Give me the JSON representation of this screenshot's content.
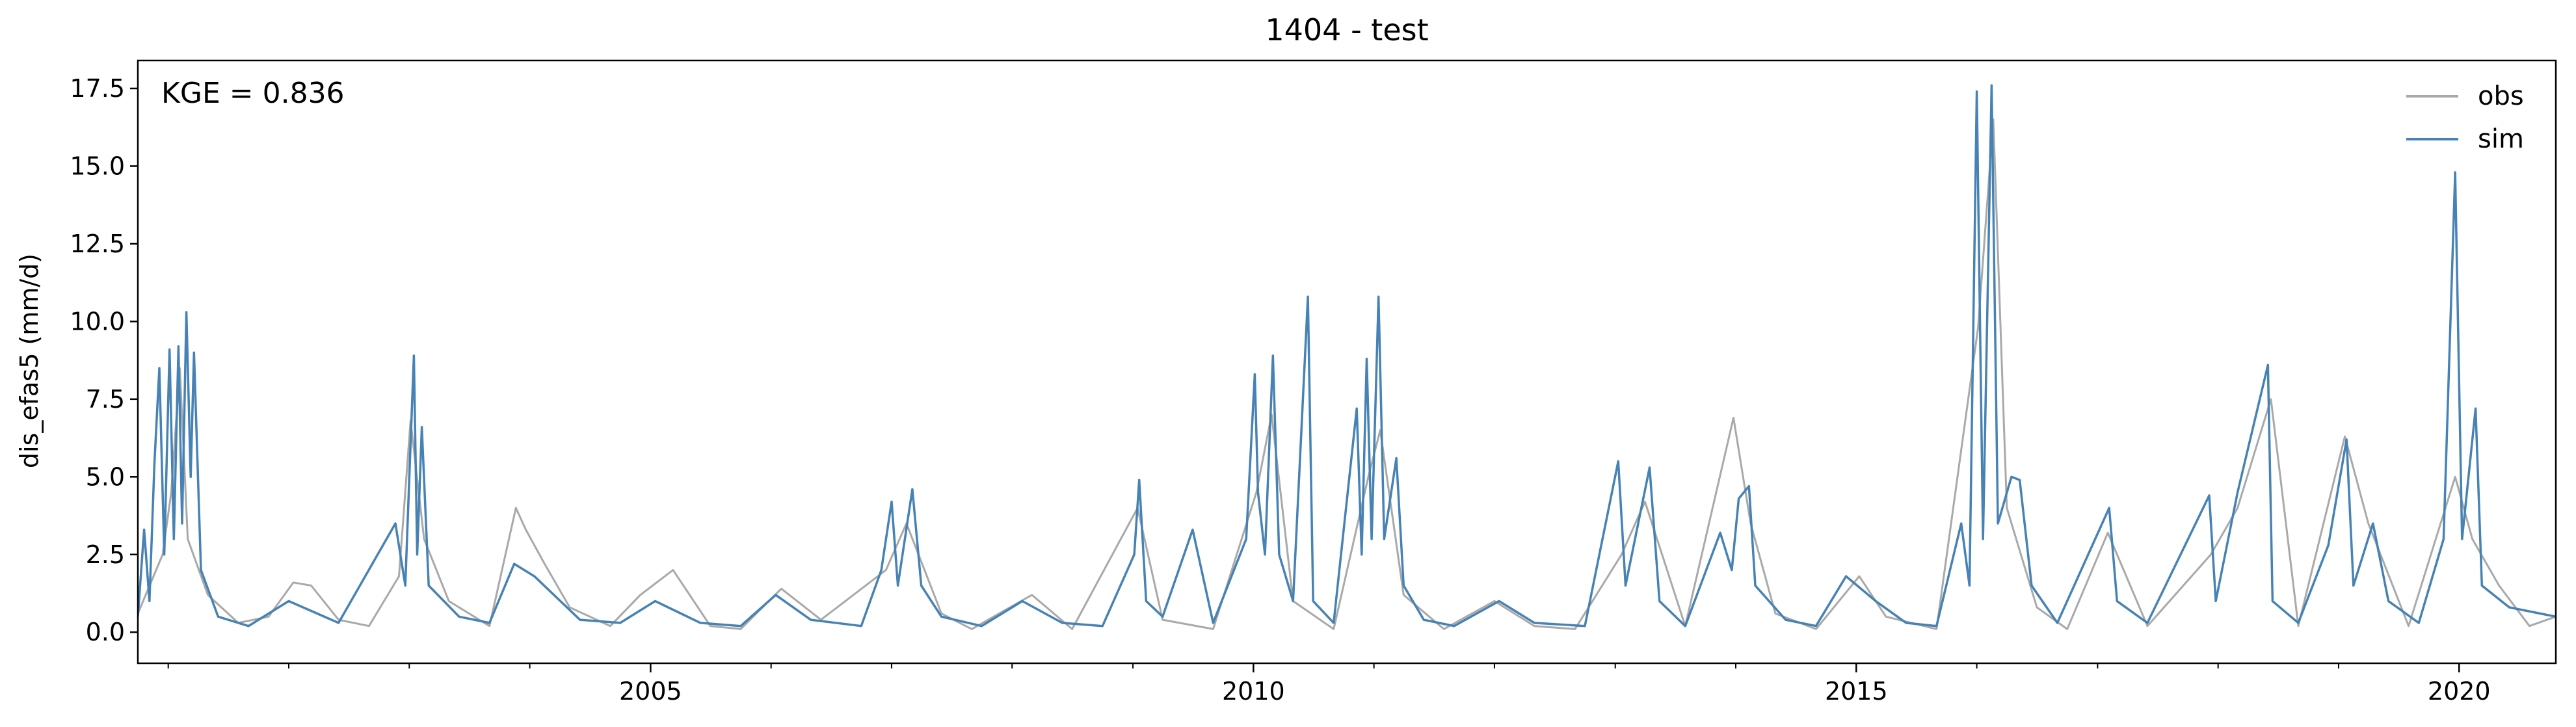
{
  "chart_data": {
    "type": "line",
    "title": "1404 - test",
    "xlabel": "",
    "ylabel": "dis_efas5 (mm/d)",
    "annotation": "KGE = 0.836",
    "xlim": [
      "2000-10-01",
      "2020-10-20"
    ],
    "ylim": [
      -1.0,
      18.4
    ],
    "x_major_ticks": [
      {
        "date": "2005-01-01",
        "label": "2005"
      },
      {
        "date": "2010-01-01",
        "label": "2010"
      },
      {
        "date": "2015-01-01",
        "label": "2015"
      },
      {
        "date": "2020-01-01",
        "label": "2020"
      }
    ],
    "y_ticks": [
      {
        "value": 0.0,
        "label": "0.0"
      },
      {
        "value": 2.5,
        "label": "2.5"
      },
      {
        "value": 5.0,
        "label": "5.0"
      },
      {
        "value": 7.5,
        "label": "7.5"
      },
      {
        "value": 10.0,
        "label": "10.0"
      },
      {
        "value": 12.5,
        "label": "12.5"
      },
      {
        "value": 15.0,
        "label": "15.0"
      },
      {
        "value": 17.5,
        "label": "17.5"
      }
    ],
    "legend_position": "top-right",
    "grid": false,
    "series": [
      {
        "name": "obs",
        "color": "#a9a9a9",
        "points": [
          [
            "2000-10-01",
            0.6
          ],
          [
            "2000-12-15",
            2.5
          ],
          [
            "2001-01-10",
            4.5
          ],
          [
            "2001-02-05",
            8.5
          ],
          [
            "2001-03-01",
            3.0
          ],
          [
            "2001-05-01",
            1.2
          ],
          [
            "2001-08-01",
            0.3
          ],
          [
            "2001-11-01",
            0.5
          ],
          [
            "2002-01-15",
            1.6
          ],
          [
            "2002-03-10",
            1.5
          ],
          [
            "2002-06-01",
            0.4
          ],
          [
            "2002-09-01",
            0.2
          ],
          [
            "2002-12-01",
            1.8
          ],
          [
            "2003-01-05",
            6.8
          ],
          [
            "2003-02-15",
            3.0
          ],
          [
            "2003-05-01",
            1.0
          ],
          [
            "2003-09-01",
            0.2
          ],
          [
            "2003-11-20",
            4.0
          ],
          [
            "2003-12-20",
            3.3
          ],
          [
            "2004-02-15",
            2.2
          ],
          [
            "2004-05-01",
            0.8
          ],
          [
            "2004-09-01",
            0.2
          ],
          [
            "2004-12-01",
            1.2
          ],
          [
            "2005-03-10",
            2.0
          ],
          [
            "2005-07-01",
            0.2
          ],
          [
            "2005-10-01",
            0.1
          ],
          [
            "2006-02-01",
            1.4
          ],
          [
            "2006-06-01",
            0.4
          ],
          [
            "2006-12-15",
            2.0
          ],
          [
            "2007-02-15",
            3.5
          ],
          [
            "2007-06-01",
            0.6
          ],
          [
            "2007-09-01",
            0.1
          ],
          [
            "2008-03-01",
            1.2
          ],
          [
            "2008-07-01",
            0.1
          ],
          [
            "2009-01-15",
            4.0
          ],
          [
            "2009-04-01",
            0.4
          ],
          [
            "2009-09-01",
            0.1
          ],
          [
            "2010-01-10",
            4.5
          ],
          [
            "2010-02-25",
            7.0
          ],
          [
            "2010-05-01",
            1.0
          ],
          [
            "2010-09-01",
            0.1
          ],
          [
            "2010-12-15",
            5.0
          ],
          [
            "2011-01-20",
            6.5
          ],
          [
            "2011-04-01",
            1.2
          ],
          [
            "2011-08-01",
            0.1
          ],
          [
            "2012-01-01",
            1.0
          ],
          [
            "2012-05-01",
            0.2
          ],
          [
            "2012-09-01",
            0.1
          ],
          [
            "2013-01-20",
            2.5
          ],
          [
            "2013-04-01",
            4.2
          ],
          [
            "2013-08-01",
            0.2
          ],
          [
            "2013-12-25",
            6.9
          ],
          [
            "2014-02-15",
            3.5
          ],
          [
            "2014-05-01",
            0.6
          ],
          [
            "2014-09-01",
            0.1
          ],
          [
            "2015-01-10",
            1.8
          ],
          [
            "2015-04-01",
            0.5
          ],
          [
            "2015-09-01",
            0.1
          ],
          [
            "2016-01-05",
            9.8
          ],
          [
            "2016-02-20",
            16.5
          ],
          [
            "2016-04-01",
            4.0
          ],
          [
            "2016-07-01",
            0.8
          ],
          [
            "2016-10-01",
            0.1
          ],
          [
            "2017-02-01",
            3.2
          ],
          [
            "2017-06-01",
            0.2
          ],
          [
            "2017-12-10",
            2.5
          ],
          [
            "2018-03-01",
            4.0
          ],
          [
            "2018-06-10",
            7.5
          ],
          [
            "2018-09-01",
            0.2
          ],
          [
            "2019-01-20",
            6.3
          ],
          [
            "2019-04-01",
            3.5
          ],
          [
            "2019-08-01",
            0.2
          ],
          [
            "2019-12-20",
            5.0
          ],
          [
            "2020-02-10",
            3.0
          ],
          [
            "2020-05-01",
            1.5
          ],
          [
            "2020-08-01",
            0.2
          ],
          [
            "2020-10-20",
            0.5
          ]
        ]
      },
      {
        "name": "sim",
        "color": "#4682b4",
        "points": [
          [
            "2000-10-01",
            0.5
          ],
          [
            "2000-10-20",
            3.3
          ],
          [
            "2000-11-05",
            1.0
          ],
          [
            "2000-11-20",
            5.4
          ],
          [
            "2000-12-05",
            8.5
          ],
          [
            "2000-12-20",
            2.5
          ],
          [
            "2001-01-05",
            9.1
          ],
          [
            "2001-01-18",
            3.0
          ],
          [
            "2001-02-01",
            9.2
          ],
          [
            "2001-02-12",
            3.5
          ],
          [
            "2001-02-25",
            10.3
          ],
          [
            "2001-03-10",
            5.0
          ],
          [
            "2001-03-20",
            9.0
          ],
          [
            "2001-04-10",
            2.0
          ],
          [
            "2001-06-01",
            0.5
          ],
          [
            "2001-09-01",
            0.2
          ],
          [
            "2002-01-01",
            1.0
          ],
          [
            "2002-06-01",
            0.3
          ],
          [
            "2002-11-20",
            3.5
          ],
          [
            "2002-12-20",
            1.5
          ],
          [
            "2003-01-08",
            6.9
          ],
          [
            "2003-01-15",
            8.9
          ],
          [
            "2003-01-25",
            2.5
          ],
          [
            "2003-02-08",
            6.6
          ],
          [
            "2003-03-01",
            1.5
          ],
          [
            "2003-06-01",
            0.5
          ],
          [
            "2003-09-01",
            0.3
          ],
          [
            "2003-11-15",
            2.2
          ],
          [
            "2004-01-15",
            1.8
          ],
          [
            "2004-06-01",
            0.4
          ],
          [
            "2004-10-01",
            0.3
          ],
          [
            "2005-01-15",
            1.0
          ],
          [
            "2005-06-01",
            0.3
          ],
          [
            "2005-10-01",
            0.2
          ],
          [
            "2006-01-15",
            1.2
          ],
          [
            "2006-05-01",
            0.4
          ],
          [
            "2006-10-01",
            0.2
          ],
          [
            "2006-12-01",
            2.0
          ],
          [
            "2007-01-01",
            4.2
          ],
          [
            "2007-01-20",
            1.5
          ],
          [
            "2007-03-05",
            4.6
          ],
          [
            "2007-04-01",
            1.5
          ],
          [
            "2007-06-01",
            0.5
          ],
          [
            "2007-10-01",
            0.2
          ],
          [
            "2008-02-01",
            1.0
          ],
          [
            "2008-06-01",
            0.3
          ],
          [
            "2008-10-01",
            0.2
          ],
          [
            "2009-01-05",
            2.5
          ],
          [
            "2009-01-20",
            4.9
          ],
          [
            "2009-02-10",
            1.0
          ],
          [
            "2009-04-01",
            0.5
          ],
          [
            "2009-07-01",
            3.3
          ],
          [
            "2009-09-01",
            0.3
          ],
          [
            "2009-12-10",
            3.0
          ],
          [
            "2010-01-05",
            8.3
          ],
          [
            "2010-01-15",
            4.5
          ],
          [
            "2010-02-05",
            2.5
          ],
          [
            "2010-03-01",
            8.9
          ],
          [
            "2010-03-20",
            2.5
          ],
          [
            "2010-05-01",
            1.0
          ],
          [
            "2010-06-15",
            10.8
          ],
          [
            "2010-07-01",
            1.0
          ],
          [
            "2010-09-01",
            0.3
          ],
          [
            "2010-11-10",
            7.2
          ],
          [
            "2010-11-25",
            2.5
          ],
          [
            "2010-12-10",
            8.8
          ],
          [
            "2010-12-25",
            3.0
          ],
          [
            "2011-01-15",
            10.8
          ],
          [
            "2011-02-01",
            3.0
          ],
          [
            "2011-03-10",
            5.6
          ],
          [
            "2011-04-01",
            1.5
          ],
          [
            "2011-06-01",
            0.4
          ],
          [
            "2011-09-01",
            0.2
          ],
          [
            "2012-01-15",
            1.0
          ],
          [
            "2012-05-01",
            0.3
          ],
          [
            "2012-10-01",
            0.2
          ],
          [
            "2013-01-10",
            5.5
          ],
          [
            "2013-02-01",
            1.5
          ],
          [
            "2013-04-15",
            5.3
          ],
          [
            "2013-05-15",
            1.0
          ],
          [
            "2013-08-01",
            0.2
          ],
          [
            "2013-11-15",
            3.2
          ],
          [
            "2013-12-20",
            2.0
          ],
          [
            "2014-01-10",
            4.3
          ],
          [
            "2014-02-10",
            4.7
          ],
          [
            "2014-03-01",
            1.5
          ],
          [
            "2014-06-01",
            0.4
          ],
          [
            "2014-09-01",
            0.2
          ],
          [
            "2014-12-01",
            1.8
          ],
          [
            "2015-03-01",
            1.0
          ],
          [
            "2015-06-01",
            0.3
          ],
          [
            "2015-09-01",
            0.2
          ],
          [
            "2015-11-15",
            3.5
          ],
          [
            "2015-12-10",
            1.5
          ],
          [
            "2016-01-01",
            17.4
          ],
          [
            "2016-01-20",
            3.0
          ],
          [
            "2016-02-15",
            17.6
          ],
          [
            "2016-03-05",
            3.5
          ],
          [
            "2016-04-15",
            5.0
          ],
          [
            "2016-05-10",
            4.9
          ],
          [
            "2016-06-15",
            1.5
          ],
          [
            "2016-09-01",
            0.3
          ],
          [
            "2017-02-05",
            4.0
          ],
          [
            "2017-03-01",
            1.0
          ],
          [
            "2017-06-01",
            0.3
          ],
          [
            "2017-12-05",
            4.4
          ],
          [
            "2017-12-25",
            1.0
          ],
          [
            "2018-03-01",
            4.5
          ],
          [
            "2018-06-01",
            8.6
          ],
          [
            "2018-06-15",
            1.0
          ],
          [
            "2018-09-01",
            0.3
          ],
          [
            "2018-12-01",
            2.8
          ],
          [
            "2019-01-25",
            6.2
          ],
          [
            "2019-02-15",
            1.5
          ],
          [
            "2019-04-15",
            3.5
          ],
          [
            "2019-06-01",
            1.0
          ],
          [
            "2019-09-01",
            0.3
          ],
          [
            "2019-11-15",
            3.0
          ],
          [
            "2019-12-20",
            14.8
          ],
          [
            "2020-01-10",
            3.0
          ],
          [
            "2020-02-20",
            7.2
          ],
          [
            "2020-03-10",
            1.5
          ],
          [
            "2020-06-01",
            0.8
          ],
          [
            "2020-10-20",
            0.5
          ]
        ]
      }
    ]
  }
}
